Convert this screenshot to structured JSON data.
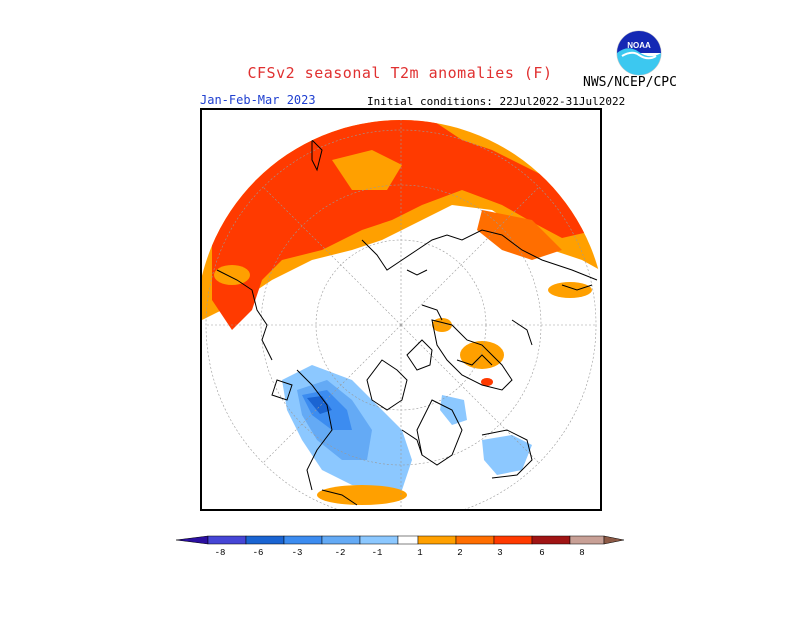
{
  "header": {
    "title": "CFSv2 seasonal T2m anomalies (F)",
    "period": "Jan-Feb-Mar 2023",
    "initial_conditions": "Initial conditions: 22Jul2022-31Jul2022",
    "agency": "NWS/NCEP/CPC",
    "logo_text": "NOAA"
  },
  "map": {
    "projection": "north-polar-stereographic",
    "dominant_pattern": "warm Eurasia / Arctic, cold western North America"
  },
  "colors": {
    "-8": "#2b0fa0",
    "-6": "#4646d6",
    "-4": "#1a64d2",
    "-3": "#3c8cf0",
    "-2": "#64aaf5",
    "-1": "#8cc8ff",
    "0": "#ffffff",
    "1": "#ffa000",
    "2": "#ff6e00",
    "3": "#ff3a00",
    "4": "#a01414",
    "6": "#c8a096",
    "8": "#8c5a46"
  },
  "colorbar": {
    "labels": [
      "-8",
      "-6",
      "-3",
      "-2",
      "-1",
      "1",
      "2",
      "3",
      "6",
      "8"
    ]
  }
}
